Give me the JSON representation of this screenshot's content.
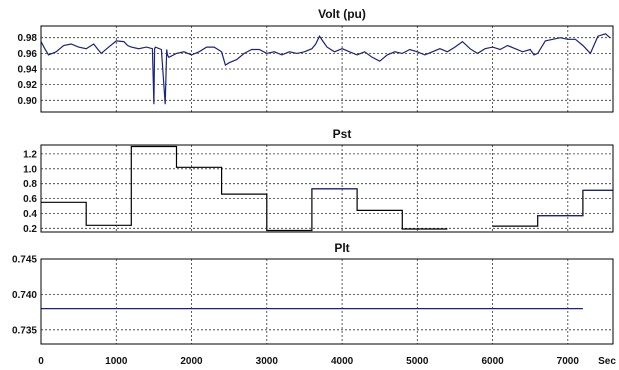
{
  "chart_data": [
    {
      "type": "line",
      "title": "Volt (pu)",
      "xlim": [
        0,
        7600
      ],
      "ylim": [
        0.885,
        0.995
      ],
      "y_ticks": [
        0.98,
        0.96,
        0.94,
        0.92,
        0.9
      ],
      "y_tick_labels": [
        "0.98",
        "0.96",
        "0.94",
        "0.92",
        "0.90"
      ],
      "x_grid": [
        1000,
        2000,
        3000,
        4000,
        5000,
        6000,
        7000
      ],
      "grid": true,
      "series": [
        {
          "color": "#1a237e",
          "x": [
            0,
            50,
            100,
            200,
            300,
            400,
            500,
            600,
            700,
            750,
            800,
            900,
            1000,
            1100,
            1150,
            1200,
            1300,
            1400,
            1480,
            1500,
            1510,
            1520,
            1600,
            1650,
            1670,
            1680,
            1700,
            1800,
            1900,
            2000,
            2100,
            2200,
            2300,
            2400,
            2450,
            2500,
            2600,
            2700,
            2800,
            2900,
            3000,
            3100,
            3200,
            3300,
            3400,
            3500,
            3600,
            3650,
            3700,
            3750,
            3800,
            3900,
            4000,
            4100,
            4200,
            4300,
            4400,
            4500,
            4600,
            4700,
            4800,
            4900,
            5000,
            5100,
            5200,
            5300,
            5400,
            5500,
            5600,
            5700,
            5800,
            5900,
            6000,
            6100,
            6200,
            6300,
            6400,
            6500,
            6550,
            6600,
            6700,
            6800,
            6900,
            7000,
            7100,
            7200,
            7300,
            7400,
            7500,
            7560
          ],
          "y": [
            0.975,
            0.966,
            0.958,
            0.962,
            0.97,
            0.972,
            0.968,
            0.966,
            0.972,
            0.966,
            0.96,
            0.968,
            0.976,
            0.975,
            0.97,
            0.968,
            0.966,
            0.968,
            0.966,
            0.895,
            0.966,
            0.968,
            0.965,
            0.895,
            0.965,
            0.958,
            0.955,
            0.96,
            0.962,
            0.958,
            0.962,
            0.968,
            0.968,
            0.962,
            0.945,
            0.948,
            0.952,
            0.96,
            0.965,
            0.965,
            0.96,
            0.962,
            0.958,
            0.962,
            0.96,
            0.962,
            0.966,
            0.972,
            0.982,
            0.975,
            0.968,
            0.962,
            0.966,
            0.962,
            0.958,
            0.962,
            0.955,
            0.95,
            0.958,
            0.962,
            0.96,
            0.965,
            0.962,
            0.958,
            0.962,
            0.966,
            0.962,
            0.968,
            0.975,
            0.966,
            0.96,
            0.966,
            0.968,
            0.965,
            0.97,
            0.966,
            0.962,
            0.965,
            0.958,
            0.96,
            0.976,
            0.978,
            0.98,
            0.978,
            0.978,
            0.97,
            0.96,
            0.982,
            0.985,
            0.98
          ]
        }
      ]
    },
    {
      "type": "line",
      "title": "Pst",
      "xlim": [
        0,
        7600
      ],
      "ylim": [
        0.15,
        1.32
      ],
      "y_ticks": [
        1.2,
        1.0,
        0.8,
        0.6,
        0.4,
        0.2
      ],
      "y_tick_labels": [
        "1.2",
        "1.0",
        "0.8",
        "0.6",
        "0.4",
        "0.2"
      ],
      "x_grid": [
        1000,
        2000,
        3000,
        4000,
        5000,
        6000,
        7000
      ],
      "grid": true,
      "series": [
        {
          "color": "#000000",
          "x": [
            0,
            600,
            600,
            1200,
            1200,
            1800,
            1800,
            2400,
            2400,
            3000,
            3000,
            3600,
            3600,
            4200,
            4200,
            4800,
            4800,
            5400
          ],
          "y": [
            0.55,
            0.55,
            0.24,
            0.24,
            1.3,
            1.3,
            1.02,
            1.02,
            0.66,
            0.66,
            0.17,
            0.17,
            0.73,
            0.73,
            0.44,
            0.44,
            0.19,
            0.19
          ]
        },
        {
          "color": "#1a237e",
          "x": [
            3600,
            4200
          ],
          "y": [
            0.73,
            0.73
          ]
        },
        {
          "color": "#000000",
          "x": [
            6000,
            6600,
            6600,
            7200,
            7200,
            7600
          ],
          "y": [
            0.23,
            0.23,
            0.37,
            0.37,
            0.71,
            0.71
          ]
        },
        {
          "color": "#1a237e",
          "x": [
            6600,
            7200
          ],
          "y": [
            0.37,
            0.37
          ]
        },
        {
          "color": "#1a237e",
          "x": [
            7200,
            7600
          ],
          "y": [
            0.71,
            0.71
          ]
        }
      ]
    },
    {
      "type": "line",
      "title": "Plt",
      "xlim": [
        0,
        7600
      ],
      "ylim": [
        0.733,
        0.745
      ],
      "y_ticks": [
        0.745,
        0.74,
        0.735
      ],
      "y_tick_labels": [
        "0.745",
        "0.740",
        "0.735"
      ],
      "x_grid": [
        1000,
        2000,
        3000,
        4000,
        5000,
        6000,
        7000
      ],
      "x_ticks": [
        0,
        1000,
        2000,
        3000,
        4000,
        5000,
        6000,
        7000
      ],
      "x_tick_labels": [
        "0",
        "1000",
        "2000",
        "3000",
        "4000",
        "5000",
        "6000",
        "7000"
      ],
      "x_unit_label": "Sec",
      "grid": true,
      "series": [
        {
          "color": "#1a237e",
          "x": [
            0,
            7200
          ],
          "y": [
            0.738,
            0.738
          ]
        }
      ]
    }
  ]
}
